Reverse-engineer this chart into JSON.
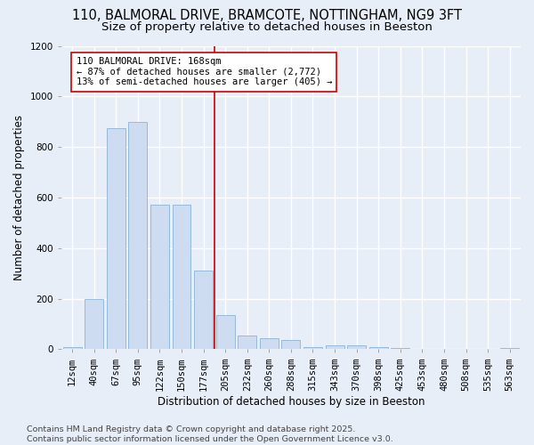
{
  "title": "110, BALMORAL DRIVE, BRAMCOTE, NOTTINGHAM, NG9 3FT",
  "subtitle": "Size of property relative to detached houses in Beeston",
  "xlabel": "Distribution of detached houses by size in Beeston",
  "ylabel": "Number of detached properties",
  "categories": [
    "12sqm",
    "40sqm",
    "67sqm",
    "95sqm",
    "122sqm",
    "150sqm",
    "177sqm",
    "205sqm",
    "232sqm",
    "260sqm",
    "288sqm",
    "315sqm",
    "343sqm",
    "370sqm",
    "398sqm",
    "425sqm",
    "453sqm",
    "480sqm",
    "508sqm",
    "535sqm",
    "563sqm"
  ],
  "values": [
    10,
    200,
    875,
    900,
    570,
    570,
    310,
    135,
    55,
    45,
    35,
    10,
    15,
    15,
    10,
    5,
    3,
    3,
    2,
    2,
    5
  ],
  "bar_color": "#cddcf0",
  "bar_edge_color": "#8cb4d8",
  "background_color": "#e8eef8",
  "grid_color": "#ffffff",
  "vline_x_idx": 6,
  "vline_color": "#cc0000",
  "annotation_line1": "110 BALMORAL DRIVE: 168sqm",
  "annotation_line2": "← 87% of detached houses are smaller (2,772)",
  "annotation_line3": "13% of semi-detached houses are larger (405) →",
  "annotation_box_color": "#ffffff",
  "annotation_edge_color": "#cc0000",
  "ylim": [
    0,
    1200
  ],
  "yticks": [
    0,
    200,
    400,
    600,
    800,
    1000,
    1200
  ],
  "footer": "Contains HM Land Registry data © Crown copyright and database right 2025.\nContains public sector information licensed under the Open Government Licence v3.0.",
  "title_fontsize": 10.5,
  "subtitle_fontsize": 9.5,
  "axis_label_fontsize": 8.5,
  "tick_fontsize": 7.5,
  "annotation_fontsize": 7.5,
  "footer_fontsize": 6.8
}
